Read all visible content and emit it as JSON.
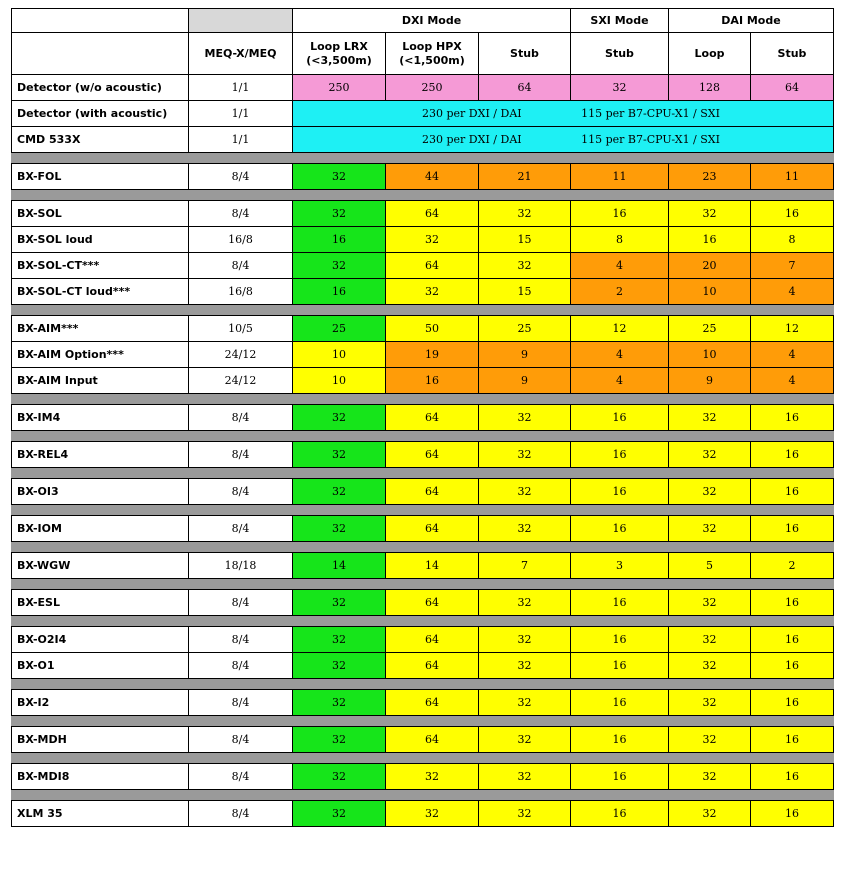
{
  "header": {
    "group_dxi": "DXI Mode",
    "group_sxi": "SXI Mode",
    "group_dai": "DAI Mode",
    "col_meq": "MEQ-X/MEQ",
    "col_loop_lrx": "Loop LRX\n(<3,500m)",
    "col_loop_hpx": "Loop HPX\n(<1,500m)",
    "col_dxi_stub": "Stub",
    "col_sxi_stub": "Stub",
    "col_dai_loop": "Loop",
    "col_dai_stub": "Stub"
  },
  "detector_rows": [
    {
      "name": "Detector (w/o acoustic)",
      "meq": "1/1",
      "values": [
        "250",
        "250",
        "64",
        "32",
        "128",
        "64"
      ]
    },
    {
      "name": "Detector (with acoustic)",
      "meq": "1/1",
      "span_left": "230 per DXI / DAI",
      "span_right": "115 per B7-CPU-X1 / SXI"
    },
    {
      "name": "CMD 533X",
      "meq": "1/1",
      "span_left": "230 per DXI / DAI",
      "span_right": "115 per B7-CPU-X1 / SXI"
    }
  ],
  "groups": [
    [
      {
        "name": "BX-FOL",
        "meq": "8/4",
        "values": [
          "32",
          "44",
          "21",
          "11",
          "23",
          "11"
        ],
        "colors": [
          "green",
          "orange",
          "orange",
          "orange",
          "orange",
          "orange"
        ]
      }
    ],
    [
      {
        "name": "BX-SOL",
        "meq": "8/4",
        "values": [
          "32",
          "64",
          "32",
          "16",
          "32",
          "16"
        ],
        "colors": [
          "green",
          "yellow",
          "yellow",
          "yellow",
          "yellow",
          "yellow"
        ]
      },
      {
        "name": "BX-SOL loud",
        "meq": "16/8",
        "values": [
          "16",
          "32",
          "15",
          "8",
          "16",
          "8"
        ],
        "colors": [
          "green",
          "yellow",
          "yellow",
          "yellow",
          "yellow",
          "yellow"
        ]
      },
      {
        "name": "BX-SOL-CT***",
        "meq": "8/4",
        "values": [
          "32",
          "64",
          "32",
          "4",
          "20",
          "7"
        ],
        "colors": [
          "green",
          "yellow",
          "yellow",
          "orange",
          "orange",
          "orange"
        ]
      },
      {
        "name": "BX-SOL-CT loud***",
        "meq": "16/8",
        "values": [
          "16",
          "32",
          "15",
          "2",
          "10",
          "4"
        ],
        "colors": [
          "green",
          "yellow",
          "yellow",
          "orange",
          "orange",
          "orange"
        ]
      }
    ],
    [
      {
        "name": "BX-AIM***",
        "meq": "10/5",
        "values": [
          "25",
          "50",
          "25",
          "12",
          "25",
          "12"
        ],
        "colors": [
          "green",
          "yellow",
          "yellow",
          "yellow",
          "yellow",
          "yellow"
        ]
      },
      {
        "name": "BX-AIM Option***",
        "meq": "24/12",
        "values": [
          "10",
          "19",
          "9",
          "4",
          "10",
          "4"
        ],
        "colors": [
          "yellow",
          "orange",
          "orange",
          "orange",
          "orange",
          "orange"
        ]
      },
      {
        "name": "BX-AIM Input",
        "meq": "24/12",
        "values": [
          "10",
          "16",
          "9",
          "4",
          "9",
          "4"
        ],
        "colors": [
          "yellow",
          "orange",
          "orange",
          "orange",
          "orange",
          "orange"
        ]
      }
    ],
    [
      {
        "name": "BX-IM4",
        "meq": "8/4",
        "values": [
          "32",
          "64",
          "32",
          "16",
          "32",
          "16"
        ],
        "colors": [
          "green",
          "yellow",
          "yellow",
          "yellow",
          "yellow",
          "yellow"
        ]
      }
    ],
    [
      {
        "name": "BX-REL4",
        "meq": "8/4",
        "values": [
          "32",
          "64",
          "32",
          "16",
          "32",
          "16"
        ],
        "colors": [
          "green",
          "yellow",
          "yellow",
          "yellow",
          "yellow",
          "yellow"
        ]
      }
    ],
    [
      {
        "name": "BX-OI3",
        "meq": "8/4",
        "values": [
          "32",
          "64",
          "32",
          "16",
          "32",
          "16"
        ],
        "colors": [
          "green",
          "yellow",
          "yellow",
          "yellow",
          "yellow",
          "yellow"
        ]
      }
    ],
    [
      {
        "name": "BX-IOM",
        "meq": "8/4",
        "values": [
          "32",
          "64",
          "32",
          "16",
          "32",
          "16"
        ],
        "colors": [
          "green",
          "yellow",
          "yellow",
          "yellow",
          "yellow",
          "yellow"
        ]
      }
    ],
    [
      {
        "name": "BX-WGW",
        "meq": "18/18",
        "values": [
          "14",
          "14",
          "7",
          "3",
          "5",
          "2"
        ],
        "colors": [
          "green",
          "yellow",
          "yellow",
          "yellow",
          "yellow",
          "yellow"
        ]
      }
    ],
    [
      {
        "name": "BX-ESL",
        "meq": "8/4",
        "values": [
          "32",
          "64",
          "32",
          "16",
          "32",
          "16"
        ],
        "colors": [
          "green",
          "yellow",
          "yellow",
          "yellow",
          "yellow",
          "yellow"
        ]
      }
    ],
    [
      {
        "name": "BX-O2I4",
        "meq": "8/4",
        "values": [
          "32",
          "64",
          "32",
          "16",
          "32",
          "16"
        ],
        "colors": [
          "green",
          "yellow",
          "yellow",
          "yellow",
          "yellow",
          "yellow"
        ]
      },
      {
        "name": "BX-O1",
        "meq": "8/4",
        "values": [
          "32",
          "64",
          "32",
          "16",
          "32",
          "16"
        ],
        "colors": [
          "green",
          "yellow",
          "yellow",
          "yellow",
          "yellow",
          "yellow"
        ]
      }
    ],
    [
      {
        "name": "BX-I2",
        "meq": "8/4",
        "values": [
          "32",
          "64",
          "32",
          "16",
          "32",
          "16"
        ],
        "colors": [
          "green",
          "yellow",
          "yellow",
          "yellow",
          "yellow",
          "yellow"
        ]
      }
    ],
    [
      {
        "name": "BX-MDH",
        "meq": "8/4",
        "values": [
          "32",
          "64",
          "32",
          "16",
          "32",
          "16"
        ],
        "colors": [
          "green",
          "yellow",
          "yellow",
          "yellow",
          "yellow",
          "yellow"
        ]
      }
    ],
    [
      {
        "name": "BX-MDI8",
        "meq": "8/4",
        "values": [
          "32",
          "32",
          "32",
          "16",
          "32",
          "16"
        ],
        "colors": [
          "green",
          "yellow",
          "yellow",
          "yellow",
          "yellow",
          "yellow"
        ]
      }
    ],
    [
      {
        "name": "XLM 35",
        "meq": "8/4",
        "values": [
          "32",
          "32",
          "32",
          "16",
          "32",
          "16"
        ],
        "colors": [
          "green",
          "yellow",
          "yellow",
          "yellow",
          "yellow",
          "yellow"
        ]
      }
    ]
  ]
}
